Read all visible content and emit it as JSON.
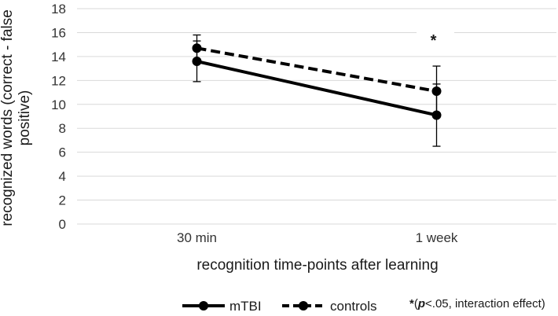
{
  "chart_data": {
    "type": "line",
    "title": "",
    "categories": [
      "30 min",
      "1 week"
    ],
    "xlabel": "recognition time-points after learning",
    "ylabel_lines": [
      "recognized words (correct - false",
      "positive)"
    ],
    "ylim": [
      0,
      18
    ],
    "yticks": [
      "0",
      "2",
      "4",
      "6",
      "8",
      "10",
      "12",
      "14",
      "16",
      "18"
    ],
    "grid": true,
    "series": [
      {
        "name": "mTBI",
        "style": "solid",
        "values": [
          13.6,
          9.1
        ],
        "err_low": [
          11.9,
          6.5
        ],
        "err_high": [
          15.3,
          11.7
        ]
      },
      {
        "name": "controls",
        "style": "dashed",
        "values": [
          14.7,
          11.1
        ],
        "err_low": [
          13.6,
          9.0
        ],
        "err_high": [
          15.8,
          13.2
        ]
      }
    ],
    "annotation": {
      "text": "*",
      "category": "1 week"
    },
    "legend": {
      "placement": "bottom"
    }
  },
  "footnote": {
    "star": "*",
    "open": "(",
    "p": "p",
    "rest": "<.05, interaction effect)"
  },
  "colors": {
    "line": "#000000",
    "grid": "#d9d9d9",
    "text": "#1a1a1a"
  }
}
